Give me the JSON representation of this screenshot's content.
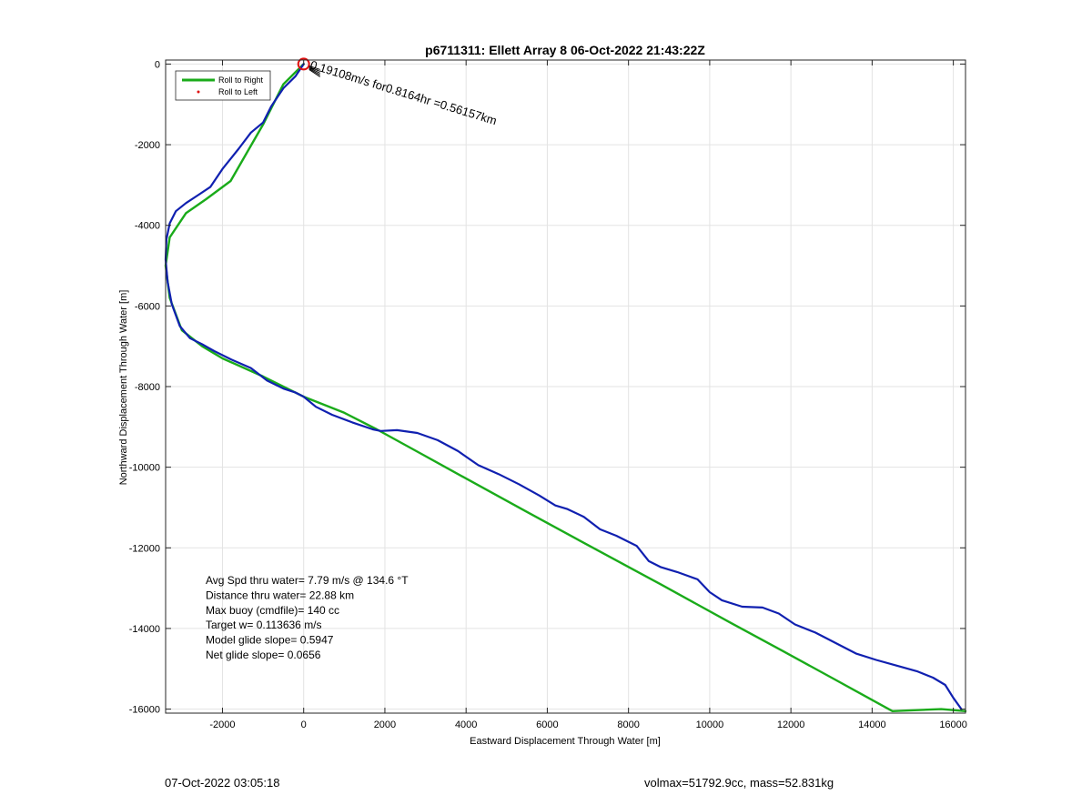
{
  "chart_data": {
    "type": "line",
    "title": "p6711311: Ellett Array 8 06-Oct-2022 21:43:22Z",
    "xlabel": "Eastward Displacement Through Water [m]",
    "ylabel": "Northward Displacement Through Water [m]",
    "xlim": [
      -3400,
      16300
    ],
    "ylim": [
      -16100,
      100
    ],
    "xticks": [
      -2000,
      0,
      2000,
      4000,
      6000,
      8000,
      10000,
      12000,
      14000,
      16000
    ],
    "yticks": [
      0,
      -2000,
      -4000,
      -6000,
      -8000,
      -10000,
      -12000,
      -14000,
      -16000
    ],
    "xtick_labels": [
      "-2000",
      "0",
      "2000",
      "4000",
      "6000",
      "8000",
      "10000",
      "12000",
      "14000",
      "16000"
    ],
    "ytick_labels": [
      "0",
      "-2000",
      "-4000",
      "-6000",
      "-8000",
      "-10000",
      "-12000",
      "-14000",
      "-16000"
    ],
    "grid": true,
    "legend_position": "top-left",
    "legend": [
      {
        "label": "Roll to Right",
        "color": "#1aab1a",
        "style": "line"
      },
      {
        "label": "Roll to Left",
        "color": "#e01010",
        "style": "dot"
      }
    ],
    "series": [
      {
        "color": "#1aab1a",
        "x": [
          0,
          -500,
          -1000,
          -1800,
          -2400,
          -2900,
          -3300,
          -3400,
          -3300,
          -3000,
          -2500,
          -2000,
          -1000,
          0,
          1000,
          1800,
          2900,
          4000,
          5500,
          7000,
          8800,
          10500,
          11800,
          13000,
          14500,
          15700,
          16300
        ],
        "y": [
          0,
          -500,
          -1500,
          -2900,
          -3350,
          -3700,
          -4300,
          -5000,
          -5800,
          -6600,
          -7000,
          -7300,
          -7750,
          -8250,
          -8650,
          -9060,
          -9670,
          -10280,
          -11110,
          -11930,
          -12910,
          -13850,
          -14560,
          -15220,
          -16050,
          -16000,
          -16050
        ]
      },
      {
        "color": "#1020b0",
        "x": [
          0,
          -200,
          -500,
          -800,
          -1000,
          -1300,
          -1600,
          -2000,
          -2300,
          -2600,
          -2900,
          -3150,
          -3300,
          -3380,
          -3400,
          -3350,
          -3250,
          -3050,
          -2800,
          -2500,
          -2200,
          -1800,
          -1300,
          -900,
          -500,
          -200,
          0,
          300,
          700,
          1200,
          1700,
          1900,
          2300,
          2800,
          3300,
          3800,
          4300,
          4800,
          5300,
          5800,
          6200,
          6500,
          6900,
          7300,
          7700,
          8200,
          8500,
          8800,
          9200,
          9700,
          10000,
          10300,
          10800,
          11300,
          11700,
          12100,
          12600,
          13100,
          13600,
          14100,
          14600,
          15100,
          15500,
          15800,
          16000,
          16200
        ],
        "y": [
          0,
          -300,
          -600,
          -1050,
          -1450,
          -1700,
          -2100,
          -2600,
          -3050,
          -3250,
          -3450,
          -3650,
          -3950,
          -4350,
          -4850,
          -5400,
          -5950,
          -6500,
          -6800,
          -6950,
          -7120,
          -7320,
          -7540,
          -7850,
          -8050,
          -8150,
          -8250,
          -8500,
          -8700,
          -8890,
          -9060,
          -9100,
          -9080,
          -9150,
          -9330,
          -9600,
          -9950,
          -10170,
          -10420,
          -10700,
          -10950,
          -11040,
          -11230,
          -11540,
          -11700,
          -11950,
          -12330,
          -12480,
          -12600,
          -12780,
          -13100,
          -13300,
          -13460,
          -13480,
          -13630,
          -13900,
          -14100,
          -14360,
          -14620,
          -14780,
          -14920,
          -15060,
          -15220,
          -15400,
          -15720,
          -16000
        ]
      }
    ],
    "annotations": [
      {
        "text": "Avg Spd thru water=  7.79 m/s @ 134.6 °T"
      },
      {
        "text": "Distance thru water= 22.88 km"
      },
      {
        "text": "Max buoy (cmdfile)= 140 cc"
      },
      {
        "text": "Target w= 0.113636 m/s"
      },
      {
        "text": "Model glide slope= 0.5947"
      },
      {
        "text": "Net glide slope= 0.0656"
      }
    ],
    "current_label": "0.19108m/s for0.8164hr =0.56157km",
    "start_marker": {
      "x": 0,
      "y": 0,
      "color": "#e01010"
    }
  },
  "footer": {
    "timestamp": "07-Oct-2022 03:05:18",
    "mass_info": "volmax=51792.9cc, mass=52.831kg"
  }
}
